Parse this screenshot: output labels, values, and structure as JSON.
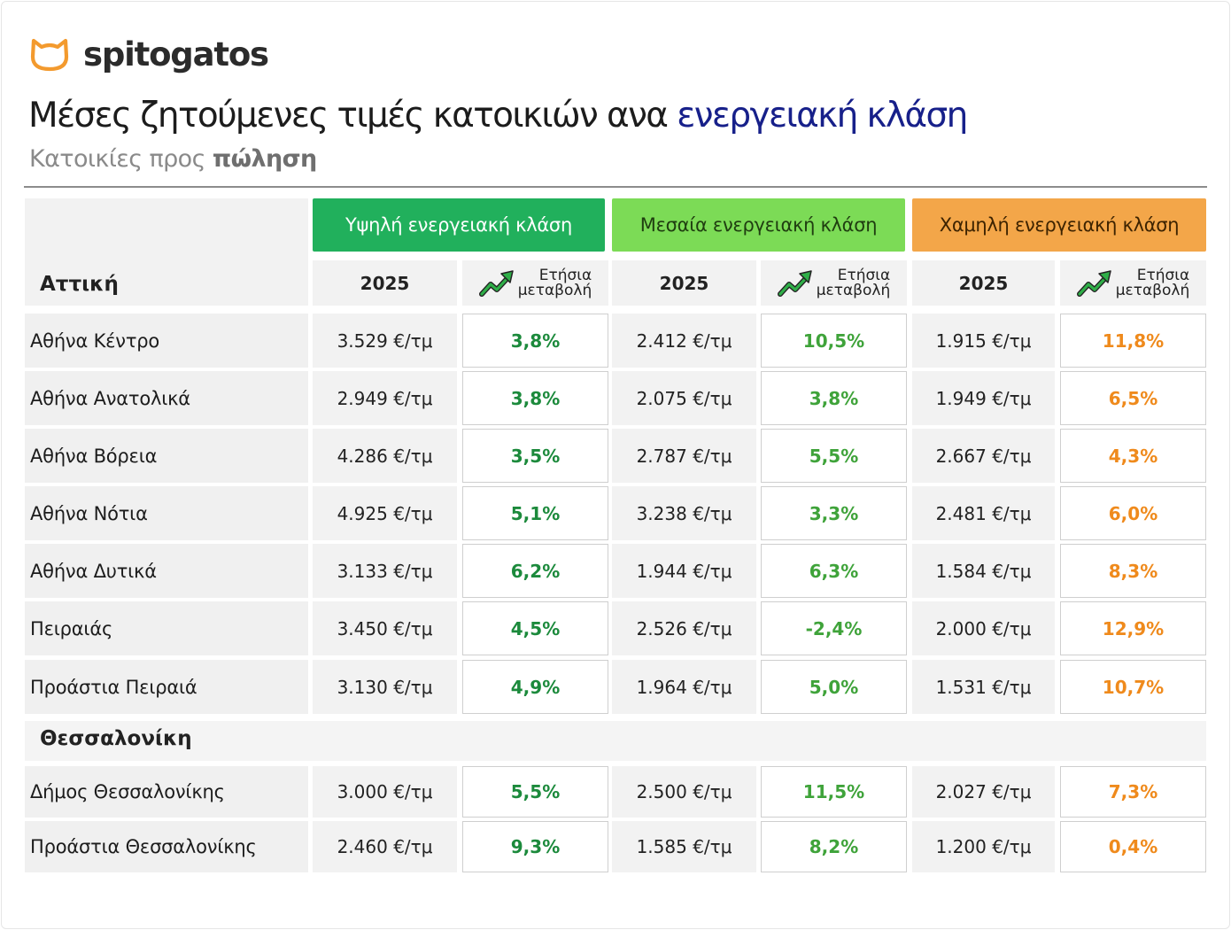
{
  "brand": {
    "name": "spitogatos",
    "logo_icon": "cat-head-icon",
    "logo_color": "#f39a2e"
  },
  "title": {
    "main": "Μέσες ζητούμενες τιμές κατοικιών ανα ",
    "accent": "ενεργειακή κλάση",
    "accent_color": "#17208a"
  },
  "subtitle": {
    "main": "Κατοικίες προς ",
    "strong": "πώληση"
  },
  "table": {
    "energy_classes": [
      {
        "label": "Υψηλή ενεργειακή κλάση",
        "color": "#21b05c"
      },
      {
        "label": "Μεσαία ενεργειακή κλάση",
        "color": "#7cdb56"
      },
      {
        "label": "Χαμηλή ενεργειακή κλάση",
        "color": "#f3a649"
      }
    ],
    "year_label": "2025",
    "change_label_line1": "Ετήσια",
    "change_label_line2": "μεταβολή",
    "trend_icon": "trend-up-arrow-icon",
    "change_colors": {
      "high": "#1c8a3c",
      "mid": "#3fa33a",
      "low": "#ef8a1c"
    },
    "regions": [
      {
        "name": "Αττική",
        "rows": [
          {
            "area": "Αθήνα Κέντρο",
            "high_price": "3.529 €/τμ",
            "high_change": "3,8%",
            "mid_price": "2.412 €/τμ",
            "mid_change": "10,5%",
            "low_price": "1.915 €/τμ",
            "low_change": "11,8%"
          },
          {
            "area": "Αθήνα Ανατολικά",
            "high_price": "2.949 €/τμ",
            "high_change": "3,8%",
            "mid_price": "2.075 €/τμ",
            "mid_change": "3,8%",
            "low_price": "1.949 €/τμ",
            "low_change": "6,5%"
          },
          {
            "area": "Αθήνα Βόρεια",
            "high_price": "4.286 €/τμ",
            "high_change": "3,5%",
            "mid_price": "2.787 €/τμ",
            "mid_change": "5,5%",
            "low_price": "2.667 €/τμ",
            "low_change": "4,3%"
          },
          {
            "area": "Αθήνα Νότια",
            "high_price": "4.925 €/τμ",
            "high_change": "5,1%",
            "mid_price": "3.238 €/τμ",
            "mid_change": "3,3%",
            "low_price": "2.481 €/τμ",
            "low_change": "6,0%"
          },
          {
            "area": "Αθήνα Δυτικά",
            "high_price": "3.133 €/τμ",
            "high_change": "6,2%",
            "mid_price": "1.944 €/τμ",
            "mid_change": "6,3%",
            "low_price": "1.584 €/τμ",
            "low_change": "8,3%"
          },
          {
            "area": "Πειραιάς",
            "high_price": "3.450 €/τμ",
            "high_change": "4,5%",
            "mid_price": "2.526 €/τμ",
            "mid_change": "-2,4%",
            "low_price": "2.000 €/τμ",
            "low_change": "12,9%"
          },
          {
            "area": "Προάστια Πειραιά",
            "high_price": "3.130 €/τμ",
            "high_change": "4,9%",
            "mid_price": "1.964 €/τμ",
            "mid_change": "5,0%",
            "low_price": "1.531 €/τμ",
            "low_change": "10,7%"
          }
        ]
      },
      {
        "name": "Θεσσαλονίκη",
        "rows": [
          {
            "area": "Δήμος Θεσσαλονίκης",
            "high_price": "3.000 €/τμ",
            "high_change": "5,5%",
            "mid_price": "2.500 €/τμ",
            "mid_change": "11,5%",
            "low_price": "2.027 €/τμ",
            "low_change": "7,3%"
          },
          {
            "area": "Προάστια Θεσσαλονίκης",
            "high_price": "2.460 €/τμ",
            "high_change": "9,3%",
            "mid_price": "1.585 €/τμ",
            "mid_change": "8,2%",
            "low_price": "1.200 €/τμ",
            "low_change": "0,4%"
          }
        ]
      }
    ]
  }
}
